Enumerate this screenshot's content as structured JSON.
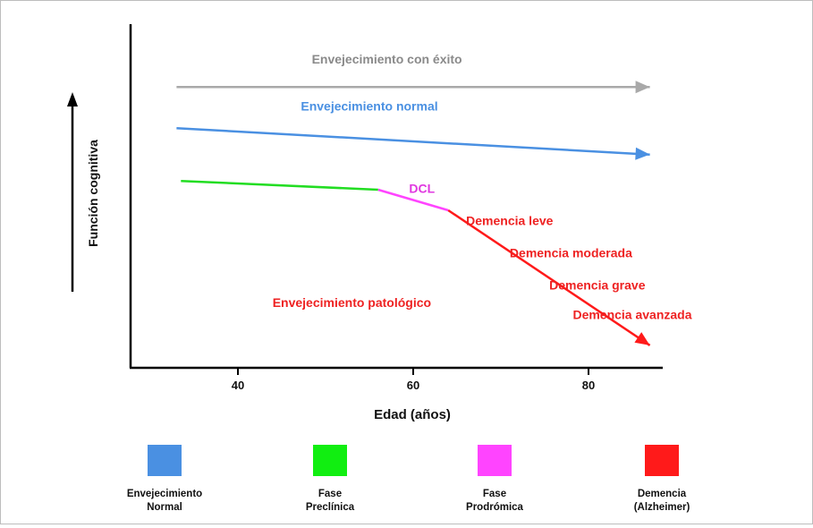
{
  "chart_data": {
    "type": "line",
    "xlabel": "Edad (años)",
    "ylabel": "Función cognitiva",
    "x_ticks": [
      40,
      60,
      80
    ],
    "xlim": [
      28,
      90
    ],
    "ylim": [
      0,
      100
    ],
    "series": [
      {
        "name": "Envejecimiento con éxito",
        "color": "#a9a9a9",
        "points": [
          [
            33,
            92
          ],
          [
            87,
            92
          ]
        ],
        "arrow": true
      },
      {
        "name": "Envejecimiento normal",
        "color": "#4a90e2",
        "points": [
          [
            33,
            78
          ],
          [
            87,
            69
          ]
        ],
        "arrow": true
      },
      {
        "name": "",
        "color": "#22dd22",
        "points": [
          [
            33.5,
            60
          ],
          [
            56,
            57
          ]
        ],
        "arrow": false
      },
      {
        "name": "DCL",
        "color": "#ff44ff",
        "points": [
          [
            56,
            57
          ],
          [
            64,
            50
          ]
        ],
        "arrow": false
      },
      {
        "name": "",
        "color": "#ff1a1a",
        "points": [
          [
            64,
            50
          ],
          [
            87,
            4
          ]
        ],
        "arrow": true
      }
    ],
    "annotations": [
      {
        "text": "Envejecimiento con éxito",
        "color": "#8a8a8a",
        "x": 57,
        "y": 100
      },
      {
        "text": "Envejecimiento normal",
        "color": "#4a90e2",
        "x": 55,
        "y": 84
      },
      {
        "text": "DCL",
        "color": "#e038e0",
        "x": 61,
        "y": 56
      },
      {
        "text": "Demencia leve",
        "color": "#ee2222",
        "x": 71,
        "y": 45
      },
      {
        "text": "Demencia moderada",
        "color": "#ee2222",
        "x": 78,
        "y": 34
      },
      {
        "text": "Demencia grave",
        "color": "#ee2222",
        "x": 81,
        "y": 23
      },
      {
        "text": "Demencia avanzada",
        "color": "#ee2222",
        "x": 85,
        "y": 13
      },
      {
        "text": "Envejecimiento patológico",
        "color": "#ee2222",
        "x": 53,
        "y": 17
      }
    ]
  },
  "legend": [
    {
      "label": [
        "Envejecimiento",
        "Normal"
      ],
      "color": "#4a90e2"
    },
    {
      "label": [
        "Fase",
        "Preclínica"
      ],
      "color": "#11ee11"
    },
    {
      "label": [
        "Fase",
        "Prodrómica"
      ],
      "color": "#ff44ff"
    },
    {
      "label": [
        "Demencia",
        "(Alzheimer)"
      ],
      "color": "#ff1a1a"
    }
  ]
}
